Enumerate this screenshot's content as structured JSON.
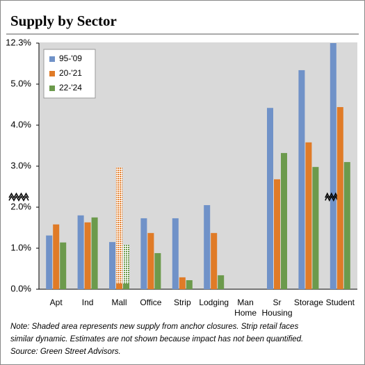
{
  "chart_data": {
    "type": "bar",
    "title": "Supply by Sector",
    "categories": [
      "Apt",
      "Ind",
      "Mall",
      "Office",
      "Strip",
      "Lodging",
      "Man Home",
      "Sr Housing",
      "Storage",
      "Student"
    ],
    "series": [
      {
        "name": "95-'09",
        "color": "#7092c8",
        "values": [
          1.31,
          1.8,
          1.15,
          1.73,
          1.73,
          2.05,
          null,
          4.42,
          5.34,
          12.3
        ]
      },
      {
        "name": "20-'21",
        "color": "#e07b27",
        "values": [
          1.58,
          1.63,
          0.14,
          1.37,
          0.29,
          1.37,
          null,
          2.68,
          3.58,
          4.44
        ],
        "shaded": [
          null,
          null,
          2.83,
          null,
          null,
          null,
          null,
          null,
          null,
          null
        ]
      },
      {
        "name": "22-'24",
        "color": "#6c9a4c",
        "values": [
          1.14,
          1.75,
          0.14,
          0.88,
          0.22,
          0.34,
          null,
          3.32,
          2.98,
          3.1
        ],
        "shaded": [
          null,
          null,
          0.94,
          null,
          null,
          null,
          null,
          null,
          null,
          null
        ]
      }
    ],
    "ylim": [
      0,
      12.3
    ],
    "y_break": [
      5.5,
      11.8
    ],
    "yticks": [
      {
        "value": 0,
        "label": "0.0%"
      },
      {
        "value": 1,
        "label": "1.0%"
      },
      {
        "value": 2,
        "label": "2.0%"
      },
      {
        "value": 3,
        "label": "3.0%"
      },
      {
        "value": 4,
        "label": "4.0%"
      },
      {
        "value": 5,
        "label": "5.0%"
      },
      {
        "value": 12.3,
        "label": "12.3%"
      }
    ],
    "grid": false,
    "legend": "upper-left",
    "note": [
      "Note: Shaded area represents new supply from anchor closures. Strip retail faces",
      "similar dynamic. Estimates are not shown because impact has not been quantified.",
      "Source: Green Street Advisors."
    ]
  }
}
